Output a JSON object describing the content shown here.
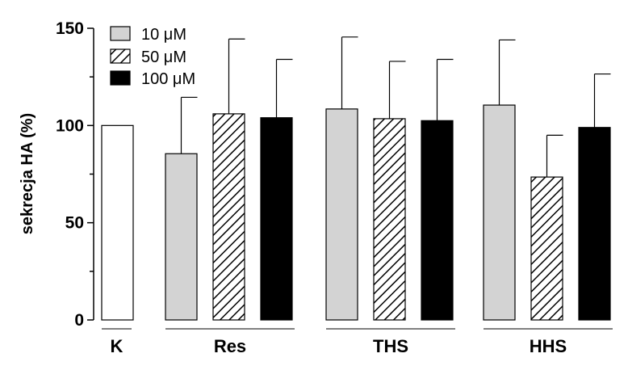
{
  "chart_data": {
    "type": "bar",
    "ylabel": "sekrecja HA (%)",
    "ylim": [
      0,
      150
    ],
    "yticks": [
      0,
      50,
      100,
      150
    ],
    "grid": false,
    "legend_position": "top-left",
    "series": [
      {
        "name": "10 μM",
        "fill": "#d3d3d3",
        "pattern": "solid"
      },
      {
        "name": "50 μM",
        "fill": "#ffffff",
        "pattern": "hatch"
      },
      {
        "name": "100 μM",
        "fill": "#000000",
        "pattern": "solid"
      }
    ],
    "control": {
      "label": "K",
      "value": 100,
      "fill": "#ffffff"
    },
    "groups": [
      {
        "label": "Res",
        "values": [
          85.5,
          106,
          104
        ],
        "errors": [
          29,
          38.5,
          30
        ]
      },
      {
        "label": "THS",
        "values": [
          108.5,
          103.5,
          102.5
        ],
        "errors": [
          37,
          29.5,
          31.5
        ]
      },
      {
        "label": "HHS",
        "values": [
          110.5,
          73.5,
          99
        ],
        "errors": [
          33.5,
          21.5,
          27.5
        ]
      }
    ]
  }
}
